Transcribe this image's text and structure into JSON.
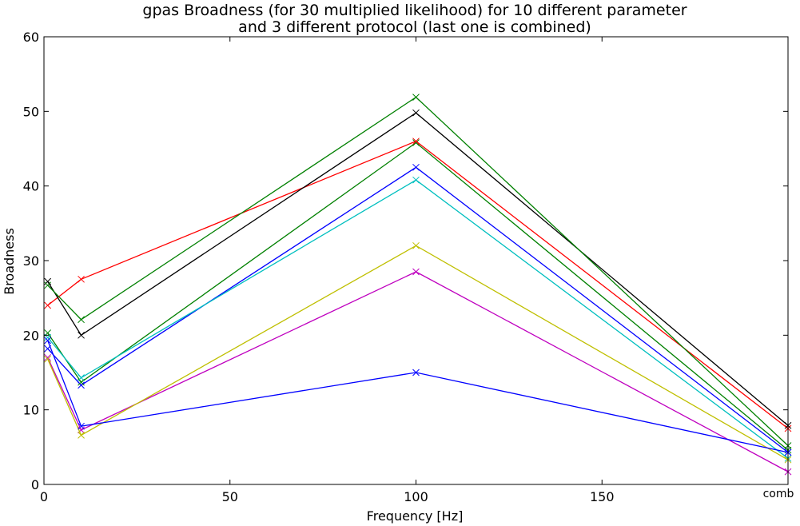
{
  "chart_data": {
    "type": "line",
    "title_lines": [
      "gpas Broadness (for 30 multiplied likelihood) for 10 different parameter",
      "and 3 different protocol (last one is combined)"
    ],
    "xlabel": "Frequency [Hz]",
    "ylabel": "Broadness",
    "xlim": [
      0,
      200
    ],
    "ylim": [
      0,
      60
    ],
    "xticks": [
      0,
      50,
      100,
      150
    ],
    "xtick_labels": [
      "0",
      "50",
      "100",
      "150"
    ],
    "extra_xtick": {
      "x": 200,
      "label": "comb"
    },
    "yticks": [
      0,
      10,
      20,
      30,
      40,
      50,
      60
    ],
    "ytick_labels": [
      "0",
      "10",
      "20",
      "30",
      "40",
      "50",
      "60"
    ],
    "grid": false,
    "marker": "x",
    "x": [
      1,
      10,
      100,
      200
    ],
    "series": [
      {
        "color": "#0000ff",
        "values": [
          18.2,
          13.3,
          42.5,
          4.3
        ]
      },
      {
        "color": "#008000",
        "values": [
          20.3,
          13.7,
          45.8,
          4.6
        ]
      },
      {
        "color": "#ff0000",
        "values": [
          24.0,
          27.5,
          46.0,
          7.5
        ]
      },
      {
        "color": "#00bfbf",
        "values": [
          19.7,
          14.3,
          40.8,
          3.5
        ]
      },
      {
        "color": "#bf00bf",
        "values": [
          17.0,
          7.3,
          28.5,
          1.7
        ]
      },
      {
        "color": "#bfbf00",
        "values": [
          16.8,
          6.6,
          32.0,
          3.3
        ]
      },
      {
        "color": "#000000",
        "values": [
          27.2,
          20.0,
          49.8,
          7.9
        ]
      },
      {
        "color": "#0000ff",
        "values": [
          19.3,
          7.8,
          15.0,
          4.3
        ]
      },
      {
        "color": "#008000",
        "values": [
          26.7,
          22.1,
          51.9,
          5.2
        ]
      }
    ]
  }
}
